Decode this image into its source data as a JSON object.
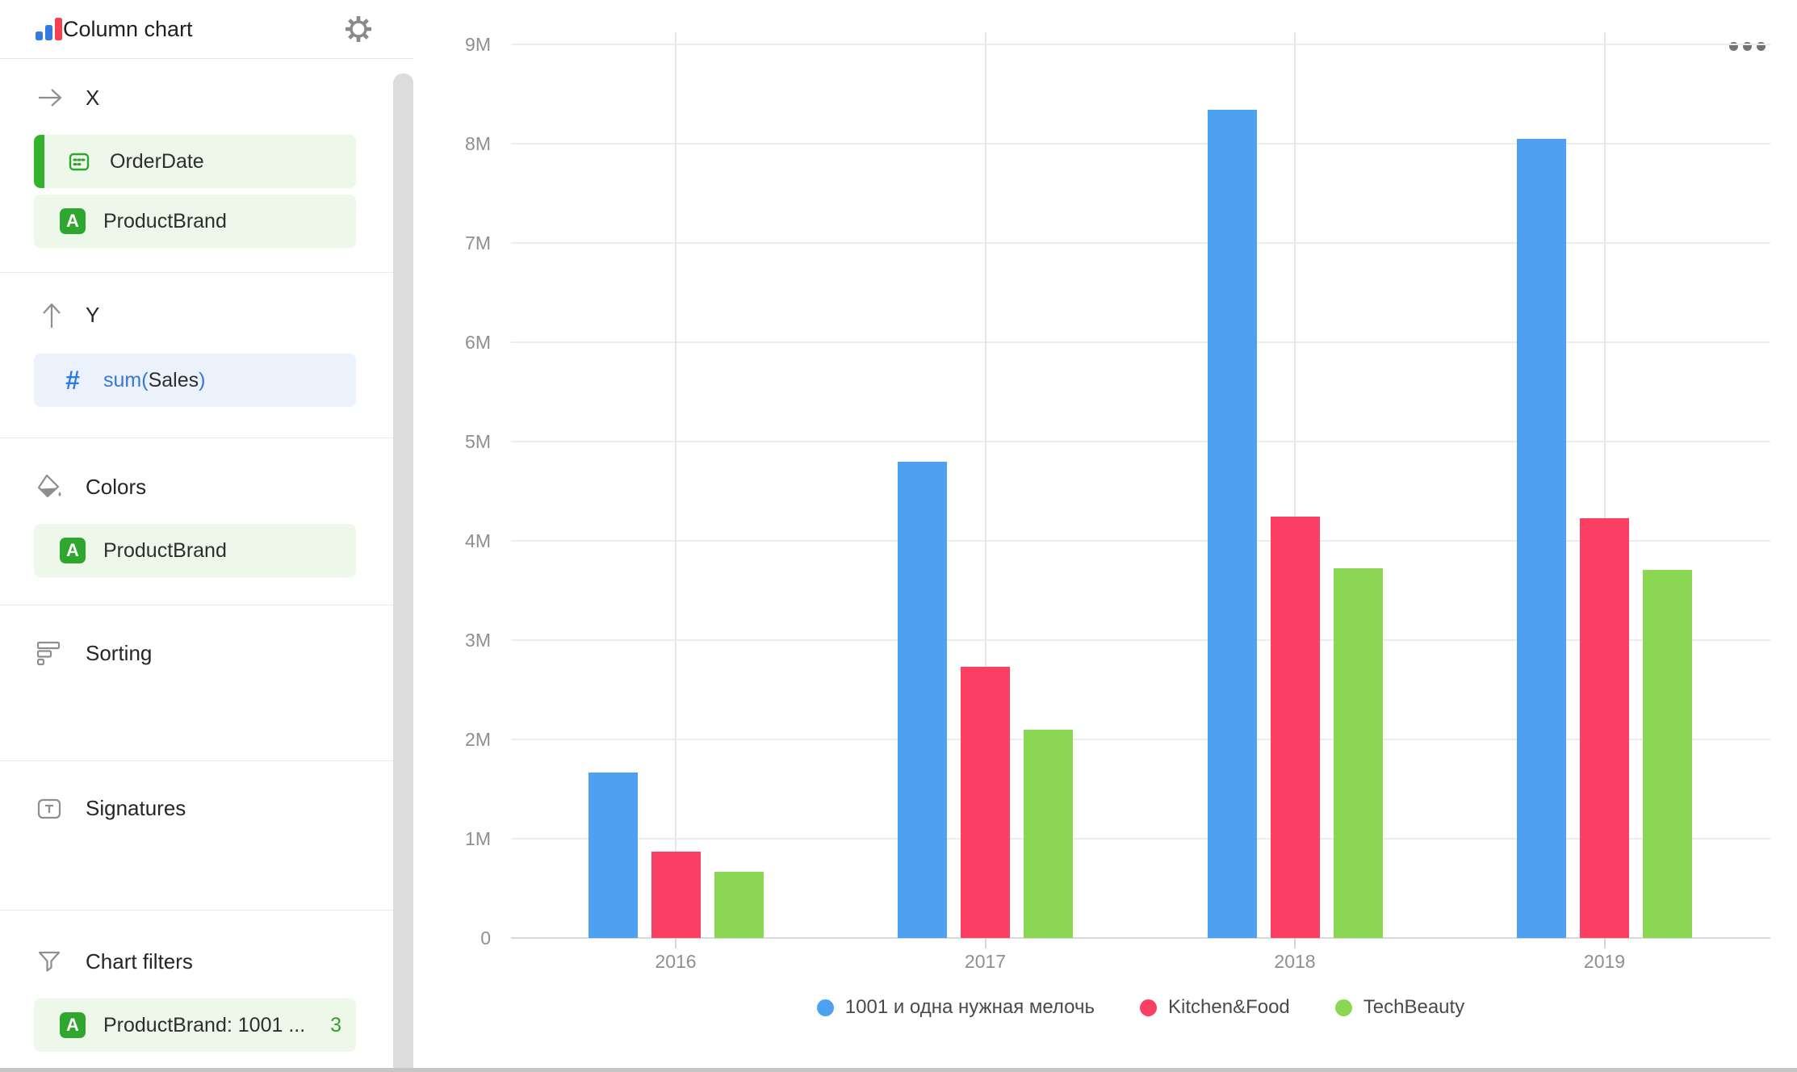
{
  "sidebar": {
    "header": {
      "title": "Column chart"
    },
    "sections": [
      {
        "id": "x",
        "label": "X",
        "icon": "arrow-right-icon",
        "items": [
          {
            "label": "OrderDate",
            "icon": "calendar-icon",
            "accent": true
          },
          {
            "label": "ProductBrand",
            "icon": "letter-a-icon"
          }
        ]
      },
      {
        "id": "y",
        "label": "Y",
        "icon": "arrow-up-icon",
        "items": [
          {
            "label_parts": [
              "sum(",
              "Sales",
              ")"
            ],
            "icon": "hash-icon"
          }
        ]
      },
      {
        "id": "colors",
        "label": "Colors",
        "icon": "paint-bucket-icon",
        "items": [
          {
            "label": "ProductBrand",
            "icon": "letter-a-icon"
          }
        ]
      },
      {
        "id": "sorting",
        "label": "Sorting",
        "icon": "sort-bars-icon",
        "items": []
      },
      {
        "id": "signatures",
        "label": "Signatures",
        "icon": "text-icon",
        "items": []
      },
      {
        "id": "filters",
        "label": "Chart filters",
        "icon": "funnel-icon",
        "items": [
          {
            "label": "ProductBrand: 1001 ...",
            "icon": "letter-a-icon",
            "count": "3"
          }
        ]
      }
    ]
  },
  "chart_data": {
    "type": "bar",
    "title": "",
    "xlabel": "",
    "ylabel": "",
    "categories": [
      "2016",
      "2017",
      "2018",
      "2019"
    ],
    "series": [
      {
        "name": "1001 и одна нужная мелочь",
        "color": "#4da1f0",
        "values": [
          1.67,
          4.8,
          8.34,
          8.05
        ]
      },
      {
        "name": "Kitchen&Food",
        "color": "#fb3e63",
        "values": [
          0.87,
          2.73,
          4.24,
          4.23
        ]
      },
      {
        "name": "TechBeauty",
        "color": "#8bd653",
        "values": [
          0.67,
          2.1,
          3.72,
          3.71
        ]
      }
    ],
    "values_unit": "millions",
    "y_ticks": [
      "0",
      "1M",
      "2M",
      "3M",
      "4M",
      "5M",
      "6M",
      "7M",
      "8M",
      "9M"
    ],
    "ylim": [
      0,
      9000000
    ],
    "grid": true,
    "legend_position": "bottom"
  }
}
